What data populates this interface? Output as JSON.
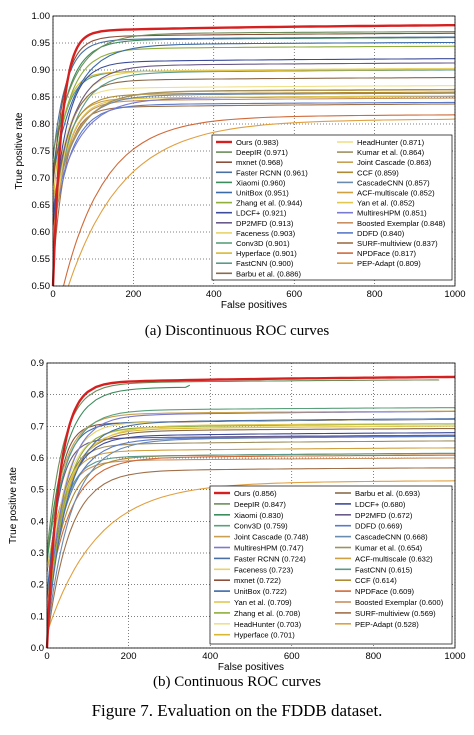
{
  "figure_caption": "Figure 7. Evaluation on the FDDB dataset.",
  "chart_data": [
    {
      "type": "line",
      "caption": "(a)  Discontinuous ROC curves",
      "xlabel": "False positives",
      "ylabel": "True positive rate",
      "xlim": [
        0,
        1000
      ],
      "ylim": [
        0.5,
        1.0
      ],
      "xticks": [
        "0",
        "200",
        "400",
        "600",
        "800",
        "1000"
      ],
      "yticks": [
        "0.50",
        "0.55",
        "0.60",
        "0.65",
        "0.70",
        "0.75",
        "0.80",
        "0.85",
        "0.90",
        "0.95",
        "1.00"
      ],
      "grid": true,
      "legend_position": "bottom-right",
      "series": [
        {
          "name": "Ours (0.983)",
          "color": "#d62020",
          "final": 0.983
        },
        {
          "name": "DeepIR (0.971)",
          "color": "#6b8e5a",
          "final": 0.971
        },
        {
          "name": "mxnet (0.968)",
          "color": "#8b4f3a",
          "final": 0.968
        },
        {
          "name": "Faster RCNN (0.961)",
          "color": "#4a6fa5",
          "final": 0.961
        },
        {
          "name": "Xiaomi (0.960)",
          "color": "#3c8c5c",
          "final": 0.96
        },
        {
          "name": "UnitBox (0.951)",
          "color": "#3a6aa8",
          "final": 0.951
        },
        {
          "name": "Zhang et al. (0.944)",
          "color": "#8fae3a",
          "final": 0.944
        },
        {
          "name": "LDCF+ (0.921)",
          "color": "#3c4c9a",
          "final": 0.921
        },
        {
          "name": "DP2MFD (0.913)",
          "color": "#6a5a8a",
          "final": 0.913
        },
        {
          "name": "Faceness (0.903)",
          "color": "#e8d36a",
          "final": 0.903
        },
        {
          "name": "Conv3D (0.901)",
          "color": "#5aa07a",
          "final": 0.901
        },
        {
          "name": "Hyperface (0.901)",
          "color": "#d8b830",
          "final": 0.901
        },
        {
          "name": "FastCNN (0.900)",
          "color": "#5a9a8a",
          "final": 0.9
        },
        {
          "name": "Barbu et al. (0.886)",
          "color": "#8a6a4a",
          "final": 0.886
        },
        {
          "name": "HeadHunter (0.871)",
          "color": "#efe08a",
          "final": 0.871
        },
        {
          "name": "Kumar et al. (0.864)",
          "color": "#a09060",
          "final": 0.864
        },
        {
          "name": "Joint Cascade (0.863)",
          "color": "#c8a050",
          "final": 0.863
        },
        {
          "name": "CCF (0.859)",
          "color": "#b08a30",
          "final": 0.859
        },
        {
          "name": "CascadeCNN (0.857)",
          "color": "#6a8ab0",
          "final": 0.857
        },
        {
          "name": "ACF-multiscale (0.852)",
          "color": "#d0a040",
          "final": 0.852
        },
        {
          "name": "Yan et al. (0.852)",
          "color": "#e0c850",
          "final": 0.852
        },
        {
          "name": "MultiresHPM (0.851)",
          "color": "#7a7ad0",
          "final": 0.851
        },
        {
          "name": "Boosted Exemplar (0.848)",
          "color": "#c89060",
          "final": 0.848
        },
        {
          "name": "DDFD (0.840)",
          "color": "#5a7ac8",
          "final": 0.84
        },
        {
          "name": "SURF-multiview (0.837)",
          "color": "#a0704a",
          "final": 0.837
        },
        {
          "name": "NPDFace (0.817)",
          "color": "#d06a3a",
          "final": 0.817
        },
        {
          "name": "PEP-Adapt (0.809)",
          "color": "#e0a040",
          "final": 0.809
        }
      ]
    },
    {
      "type": "line",
      "caption": "(b)  Continuous ROC curves",
      "xlabel": "False positives",
      "ylabel": "True positive rate",
      "xlim": [
        0,
        1000
      ],
      "ylim": [
        0.0,
        0.9
      ],
      "xticks": [
        "0",
        "200",
        "400",
        "600",
        "800",
        "1000"
      ],
      "yticks": [
        "0.0",
        "0.1",
        "0.2",
        "0.3",
        "0.4",
        "0.5",
        "0.6",
        "0.7",
        "0.8",
        "0.9"
      ],
      "grid": true,
      "legend_position": "bottom-right",
      "series": [
        {
          "name": "Ours (0.856)",
          "color": "#d62020",
          "final": 0.856
        },
        {
          "name": "DeepIR (0.847)",
          "color": "#6b8e5a",
          "final": 0.847
        },
        {
          "name": "Xiaomi (0.830)",
          "color": "#3c8c5c",
          "final": 0.83
        },
        {
          "name": "Conv3D (0.759)",
          "color": "#5aa07a",
          "final": 0.759
        },
        {
          "name": "Joint Cascade (0.748)",
          "color": "#c8a050",
          "final": 0.748
        },
        {
          "name": "MultiresHPM (0.747)",
          "color": "#7a7ad0",
          "final": 0.747
        },
        {
          "name": "Faster RCNN (0.724)",
          "color": "#4a6fa5",
          "final": 0.724
        },
        {
          "name": "Faceness (0.723)",
          "color": "#e8d36a",
          "final": 0.723
        },
        {
          "name": "mxnet (0.722)",
          "color": "#8b4f3a",
          "final": 0.722
        },
        {
          "name": "UnitBox (0.722)",
          "color": "#3a6aa8",
          "final": 0.722
        },
        {
          "name": "Yan et al. (0.709)",
          "color": "#e0c850",
          "final": 0.709
        },
        {
          "name": "Zhang et al. (0.708)",
          "color": "#8fae3a",
          "final": 0.708
        },
        {
          "name": "HeadHunter (0.703)",
          "color": "#efe08a",
          "final": 0.703
        },
        {
          "name": "Hyperface (0.701)",
          "color": "#d8b830",
          "final": 0.701
        },
        {
          "name": "Barbu et al. (0.693)",
          "color": "#8a6a4a",
          "final": 0.693
        },
        {
          "name": "LDCF+ (0.680)",
          "color": "#3c4c9a",
          "final": 0.68
        },
        {
          "name": "DP2MFD (0.672)",
          "color": "#6a5a8a",
          "final": 0.672
        },
        {
          "name": "DDFD (0.669)",
          "color": "#5a7ac8",
          "final": 0.669
        },
        {
          "name": "CascadeCNN (0.668)",
          "color": "#6a8ab0",
          "final": 0.668
        },
        {
          "name": "Kumar et al. (0.654)",
          "color": "#a09060",
          "final": 0.654
        },
        {
          "name": "ACF-multiscale (0.632)",
          "color": "#d0a040",
          "final": 0.632
        },
        {
          "name": "FastCNN (0.615)",
          "color": "#5a9a8a",
          "final": 0.615
        },
        {
          "name": "CCF (0.614)",
          "color": "#b08a30",
          "final": 0.614
        },
        {
          "name": "NPDFace (0.609)",
          "color": "#d06a3a",
          "final": 0.609
        },
        {
          "name": "Boosted Exemplar (0.600)",
          "color": "#c89060",
          "final": 0.6
        },
        {
          "name": "SURF-multiview (0.569)",
          "color": "#a0704a",
          "final": 0.569
        },
        {
          "name": "PEP-Adapt (0.528)",
          "color": "#e0a040",
          "final": 0.528
        }
      ]
    }
  ]
}
